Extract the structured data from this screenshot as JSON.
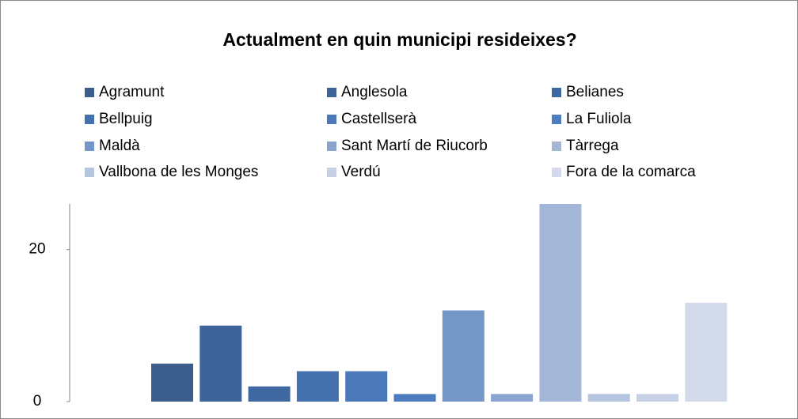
{
  "chart_data": {
    "type": "bar",
    "title": "Actualment en quin municipi resideixes?",
    "series": [
      {
        "name": "Agramunt",
        "color": "#3b5e8c",
        "values": [
          5
        ]
      },
      {
        "name": "Anglesola",
        "color": "#3d6399",
        "values": [
          10
        ]
      },
      {
        "name": "Belianes",
        "color": "#3f68a1",
        "values": [
          2
        ]
      },
      {
        "name": "Bellpuig",
        "color": "#4470ad",
        "values": [
          4
        ]
      },
      {
        "name": "Castellserà",
        "color": "#4a78b8",
        "values": [
          4
        ]
      },
      {
        "name": "La Fuliola",
        "color": "#4d7dbf",
        "values": [
          1
        ]
      },
      {
        "name": "Maldà",
        "color": "#7597c8",
        "values": [
          12
        ]
      },
      {
        "name": "Sant Martí de Riucorb",
        "color": "#8aa4cf",
        "values": [
          1
        ]
      },
      {
        "name": "Tàrrega",
        "color": "#a3b6d7",
        "values": [
          26
        ]
      },
      {
        "name": "Vallbona de les Monges",
        "color": "#b5c4df",
        "values": [
          1
        ]
      },
      {
        "name": "Verdú",
        "color": "#c5d0e5",
        "values": [
          1
        ]
      },
      {
        "name": "Fora de la comarca",
        "color": "#d3dbeb",
        "values": [
          13
        ]
      }
    ],
    "ylim": [
      0,
      26
    ],
    "yticks": [
      0,
      20
    ],
    "legend": "top"
  }
}
